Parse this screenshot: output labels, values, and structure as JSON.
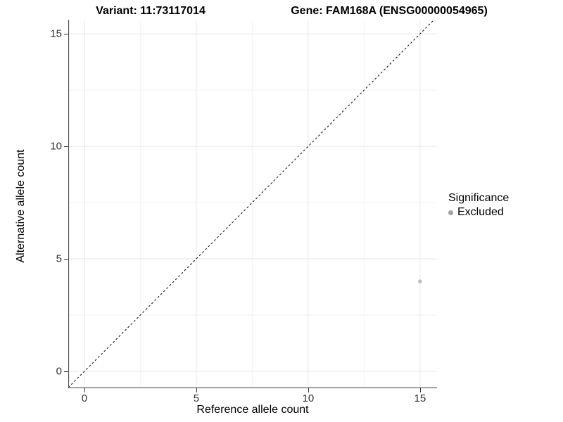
{
  "titles": {
    "variant": "Variant: 11:73117014",
    "gene": "Gene: FAM168A (ENSG00000054965)"
  },
  "legend": {
    "title": "Significance",
    "items": [
      {
        "label": "Excluded",
        "color": "#a1a1a1"
      }
    ]
  },
  "colors": {
    "grid_major": "#e7e7e7",
    "grid_minor": "#f3f3f3",
    "axis_line": "#4d4d4d",
    "tick_mark": "#333333",
    "dashed_line": "#1a1a1a",
    "point": "#bdbdbd",
    "background": "#ffffff"
  },
  "chart_data": {
    "type": "scatter",
    "title": "Variant: 11:73117014   Gene: FAM168A (ENSG00000054965)",
    "xlabel": "Reference allele count",
    "ylabel": "Alternative allele count",
    "xlim": [
      -0.72,
      15.76
    ],
    "ylim": [
      -0.75,
      15.63
    ],
    "x_ticks": [
      0,
      5,
      10,
      15
    ],
    "y_ticks": [
      0,
      5,
      10,
      15
    ],
    "minor_ticks": [
      2.5,
      7.5,
      12.5
    ],
    "grid": true,
    "legend_position": "right",
    "reference_line": {
      "type": "identity",
      "style": "dashed",
      "color": "#1a1a1a"
    },
    "series": [
      {
        "name": "Excluded",
        "color": "#bdbdbd",
        "points": [
          {
            "x": 15,
            "y": 4
          }
        ]
      }
    ]
  }
}
